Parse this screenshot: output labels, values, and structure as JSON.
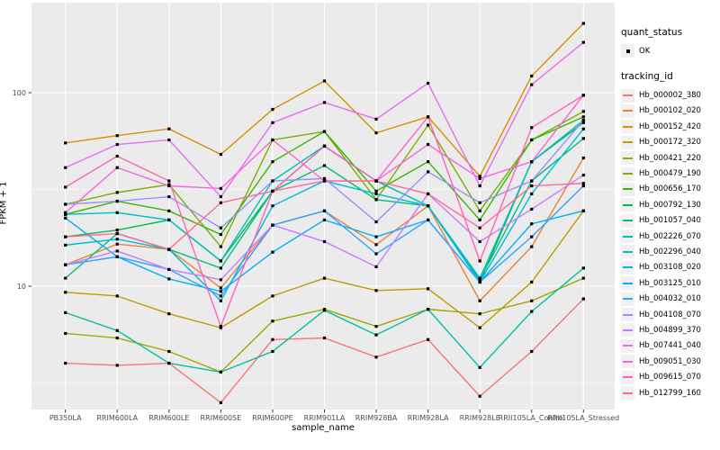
{
  "figure": {
    "y_axis_title": "FPKM + 1",
    "x_axis_title": "sample_name"
  },
  "legend": {
    "quant_title": "quant_status",
    "quant_item_label": "OK",
    "quant_marker": "black-square-point",
    "tracking_title": "tracking_id"
  },
  "chart_data": {
    "type": "line",
    "title": "",
    "xlabel": "sample_name",
    "ylabel": "FPKM + 1",
    "y_scale": "log10",
    "y_tick_labels": [
      "100",
      "10"
    ],
    "y_major_breaks": [
      100,
      10
    ],
    "y_minor_breaks": [
      31.62,
      3.162
    ],
    "ylim_displayed": [
      2.3,
      290
    ],
    "grid": true,
    "panel_bg": "#EBEBEB",
    "grid_color": "#FFFFFF",
    "marker": "black-square",
    "legend_position": "right",
    "categories": [
      "PB350LA",
      "RRIM600LA",
      "RRIM600LE",
      "RRIM600SE",
      "RRIM600PE",
      "RRIM901LA",
      "RRIM928BA",
      "RRIM928LA",
      "RRIM928LE",
      "RRII105LA_Control",
      "RRII105LA_Stressed"
    ],
    "series": [
      {
        "name": "Hb_000002_380",
        "color": "#F8766D",
        "values": [
          4.0,
          3.9,
          4.0,
          2.5,
          5.3,
          5.4,
          4.3,
          5.3,
          2.7,
          4.6,
          8.6
        ]
      },
      {
        "name": "Hb_000102_020",
        "color": "#EA8331",
        "values": [
          12.9,
          16.5,
          15.5,
          9.8,
          20.7,
          24.5,
          16.4,
          26,
          8.4,
          16,
          46
        ]
      },
      {
        "name": "Hb_000152_420",
        "color": "#D89000",
        "values": [
          55,
          60,
          65,
          48,
          82,
          115,
          62,
          75,
          37,
          122,
          228
        ]
      },
      {
        "name": "Hb_000172_320",
        "color": "#C09B00",
        "values": [
          9.3,
          8.9,
          7.2,
          6.1,
          8.9,
          11,
          9.5,
          9.7,
          6.1,
          10.5,
          24.5
        ]
      },
      {
        "name": "Hb_000421_220",
        "color": "#A3A500",
        "values": [
          5.7,
          5.4,
          4.6,
          3.6,
          6.6,
          7.6,
          6.2,
          7.6,
          7.2,
          8.4,
          11
        ]
      },
      {
        "name": "Hb_000479_190",
        "color": "#7CAE00",
        "values": [
          26.5,
          30.5,
          33.5,
          16,
          57,
          63,
          28,
          68,
          24.5,
          57,
          80
        ]
      },
      {
        "name": "Hb_000656_170",
        "color": "#39B600",
        "values": [
          23.5,
          27.5,
          24.5,
          18.5,
          44,
          63,
          31,
          44,
          22,
          57,
          75
        ]
      },
      {
        "name": "Hb_000792_130",
        "color": "#00BB4E",
        "values": [
          18,
          19.5,
          22,
          13.5,
          31,
          53,
          35,
          26,
          10.5,
          44,
          70
        ]
      },
      {
        "name": "Hb_001057_040",
        "color": "#00BF7D",
        "values": [
          11,
          18.7,
          15.5,
          12.4,
          31,
          42,
          28,
          26,
          10.8,
          35,
          58
        ]
      },
      {
        "name": "Hb_002226_070",
        "color": "#00C1A3",
        "values": [
          7.3,
          5.9,
          4.0,
          3.6,
          4.6,
          7.5,
          5.6,
          7.6,
          3.8,
          7.4,
          12.4
        ]
      },
      {
        "name": "Hb_002296_040",
        "color": "#00BFC4",
        "values": [
          23.5,
          24,
          22,
          13.5,
          35,
          53,
          35,
          26,
          11,
          44,
          72
        ]
      },
      {
        "name": "Hb_003108_020",
        "color": "#00BAE0",
        "values": [
          16.3,
          17.5,
          15.5,
          8.4,
          26,
          35,
          30,
          26,
          10.5,
          30,
          65
        ]
      },
      {
        "name": "Hb_003125_010",
        "color": "#00B0F6",
        "values": [
          22.5,
          14.2,
          10.9,
          9.4,
          15,
          22,
          18,
          22,
          10.5,
          21,
          24.5
        ]
      },
      {
        "name": "Hb_004032_010",
        "color": "#35A2FF",
        "values": [
          12.9,
          14.2,
          12.2,
          8.9,
          20.7,
          24.5,
          14.7,
          22,
          10.5,
          18,
          33
        ]
      },
      {
        "name": "Hb_004108_070",
        "color": "#9590FF",
        "values": [
          26.5,
          27.5,
          29,
          20,
          35,
          36,
          21.5,
          39,
          27,
          35,
          72
        ]
      },
      {
        "name": "Hb_004899_370",
        "color": "#C77CFF",
        "values": [
          12.9,
          15.2,
          12.2,
          10.8,
          20.7,
          17,
          12.6,
          30,
          17,
          25,
          37.5
        ]
      },
      {
        "name": "Hb_007441_040",
        "color": "#E76BF3",
        "values": [
          41,
          54,
          57,
          29,
          70,
          89,
          73,
          112,
          33,
          110,
          182
        ]
      },
      {
        "name": "Hb_009051_030",
        "color": "#FA62DB",
        "values": [
          24,
          41,
          33,
          32,
          57,
          35,
          35,
          54,
          36,
          44,
          97
        ]
      },
      {
        "name": "Hb_009615_070",
        "color": "#FF62BC",
        "values": [
          32.5,
          47,
          35,
          6.2,
          31,
          53,
          35,
          75,
          13.5,
          66,
          97
        ]
      },
      {
        "name": "Hb_012799_160",
        "color": "#FF6A98",
        "values": [
          18,
          18.7,
          15.5,
          27,
          31,
          35,
          35,
          30,
          20,
          33,
          34
        ]
      }
    ]
  }
}
